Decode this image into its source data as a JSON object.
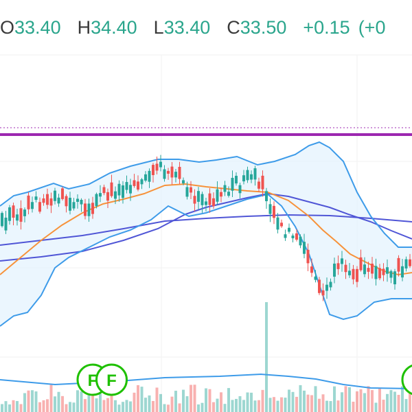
{
  "header": {
    "open_label": "O",
    "open_value": "33.40",
    "high_label": "H",
    "high_value": "34.40",
    "low_label": "L",
    "low_value": "33.40",
    "close_label": "C",
    "close_value": "33.50",
    "change": "+0.15",
    "change_percent": "(+0"
  },
  "colors": {
    "up": "#26a69a",
    "down": "#ef5350",
    "bollinger_band": "#3d9be9",
    "bollinger_fill": "#e3f2fd",
    "ma_short": "#f7923a",
    "ma_long": "#4f55d6",
    "alert_line": "#9c27b0",
    "value_text": "#2aa58c",
    "event_marker": "#1ec000"
  },
  "event_markers": [
    {
      "label": "F",
      "bar": 24
    },
    {
      "label": "F",
      "bar": 29
    },
    {
      "label": "F",
      "bar": 110
    }
  ]
}
